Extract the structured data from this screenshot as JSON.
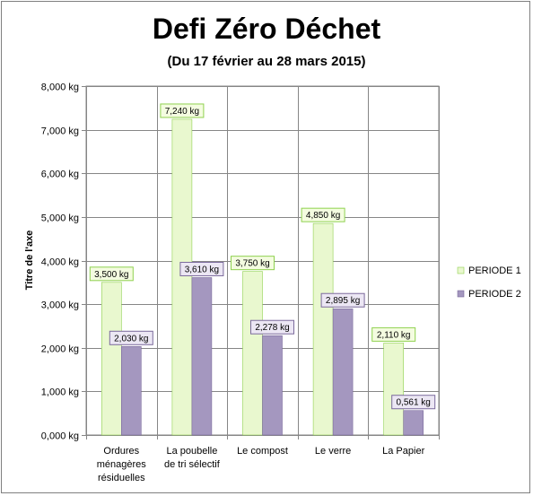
{
  "chart_data": {
    "type": "bar",
    "title": "Defi Zéro Déchet",
    "subtitle": "(Du 17 février au 28 mars 2015)",
    "ylabel": "Titre de l'axe",
    "xlabel": "",
    "ylim": [
      0,
      8000
    ],
    "ytick_step": 1000,
    "ytick_labels": [
      "0,000 kg",
      "1,000 kg",
      "2,000 kg",
      "3,000 kg",
      "4,000 kg",
      "5,000 kg",
      "6,000 kg",
      "7,000 kg",
      "8,000 kg"
    ],
    "grid": true,
    "legend_position": "right",
    "categories": [
      [
        "Ordures",
        "ménagères",
        "résiduelles"
      ],
      [
        "La poubelle",
        "de tri sélectif"
      ],
      [
        "Le compost"
      ],
      [
        "Le verre"
      ],
      [
        "La Papier"
      ]
    ],
    "series": [
      {
        "name": "PERIODE 1",
        "color": "#e9f8cf",
        "label_color": "#f4fce0",
        "border_color": "#8fd14f",
        "values": [
          3500,
          7240,
          3750,
          4850,
          2110
        ],
        "labels": [
          "3,500 kg",
          "7,240 kg",
          "3,750 kg",
          "4,850 kg",
          "2,110 kg"
        ]
      },
      {
        "name": "PERIODE 2",
        "color": "#a497bf",
        "label_color": "#ece7f4",
        "border_color": "#7b6a9c",
        "values": [
          2030,
          3610,
          2278,
          2895,
          561
        ],
        "labels": [
          "2,030 kg",
          "3,610 kg",
          "2,278 kg",
          "2,895 kg",
          "0,561 kg"
        ]
      }
    ]
  }
}
